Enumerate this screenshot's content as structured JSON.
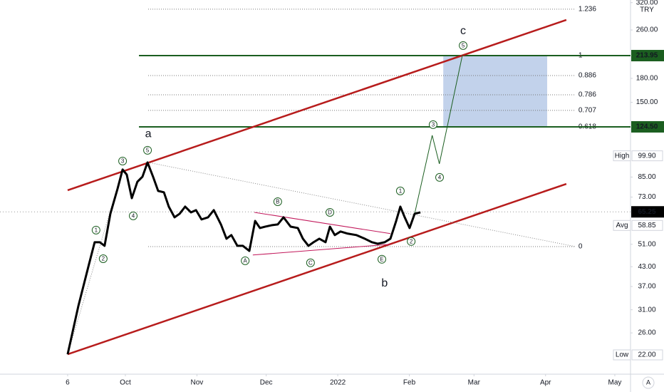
{
  "chart_data": {
    "type": "line",
    "color": "#000000",
    "log_scale": true,
    "currency": "TRY",
    "x": [
      0,
      4.6,
      9.3,
      11.7,
      13.9,
      16,
      18.5,
      21.6,
      23.8,
      25.6,
      27.8,
      30.2,
      32.4,
      34.6,
      37,
      39.2,
      41.7,
      43.8,
      46.3,
      48.5,
      50.9,
      53.4,
      55.6,
      58,
      60.8,
      63.3,
      66.4,
      68.8,
      70.9,
      73.5,
      75.9,
      78.7,
      81.2,
      83.3,
      85.5,
      88.6,
      91,
      93.5,
      96.6,
      99.7,
      101.9,
      104.3,
      106.5,
      109,
      111.7,
      113.6,
      115.7,
      118.2,
      121.3,
      125,
      128.7,
      131.8,
      134.3,
      137.3,
      139.8,
      142.3,
      144.1,
      146,
      148.1,
      150.3,
      152.8
    ],
    "values": [
      22.1,
      31.8,
      44.0,
      51.8,
      51.8,
      50.4,
      64.3,
      77.7,
      90.0,
      86.6,
      72.4,
      82.0,
      85.2,
      95.0,
      85.2,
      76.5,
      75.7,
      67.9,
      62.6,
      64.3,
      67.9,
      65.0,
      66.1,
      61.6,
      62.6,
      66.1,
      59.3,
      53.2,
      54.7,
      50.4,
      50.4,
      48.5,
      60.9,
      57.7,
      58.3,
      59.0,
      59.3,
      62.6,
      58.3,
      57.7,
      53.2,
      50.4,
      51.8,
      53.2,
      51.8,
      58.3,
      54.7,
      56.2,
      55.3,
      54.7,
      53.2,
      51.8,
      51.2,
      51.8,
      53.2,
      60.9,
      67.9,
      62.6,
      57.7,
      64.3,
      65.0
    ],
    "xlim": [
      -29.3,
      243.8
    ],
    "ylim": [
      19.0,
      326.5
    ],
    "xticks": [
      {
        "value": 0,
        "label": "6"
      },
      {
        "value": 25,
        "label": "Oct"
      },
      {
        "value": 56,
        "label": "Nov"
      },
      {
        "value": 86,
        "label": "Dec"
      },
      {
        "value": 117,
        "label": "2022"
      },
      {
        "value": 148,
        "label": "Feb"
      },
      {
        "value": 176,
        "label": "Mar"
      },
      {
        "value": 207,
        "label": "Apr"
      },
      {
        "value": 237,
        "label": "May"
      }
    ],
    "yticks": [
      {
        "value": 26,
        "label": "26.00"
      },
      {
        "value": 31,
        "label": "31.00"
      },
      {
        "value": 37,
        "label": "37.00"
      },
      {
        "value": 43,
        "label": "43.00"
      },
      {
        "value": 51,
        "label": "51.00"
      },
      {
        "value": 73,
        "label": "73.00"
      },
      {
        "value": 85,
        "label": "85.00"
      },
      {
        "value": 150,
        "label": "150.00"
      },
      {
        "value": 180,
        "label": "180.00"
      },
      {
        "value": 260,
        "label": "260.00"
      },
      {
        "value": 320,
        "label": "320.00"
      }
    ],
    "last_price": {
      "value": 65.25,
      "label": "65.25",
      "color": "#000000"
    },
    "levels": [
      {
        "value": 213.95,
        "label": "213.95",
        "color": "#1b5e20"
      },
      {
        "value": 124.5,
        "label": "124.50",
        "color": "#1b5e20"
      }
    ],
    "stats": [
      {
        "name": "High",
        "value": 99.9,
        "label": "99.90"
      },
      {
        "name": "Avg",
        "value": 58.85,
        "label": "58.85"
      },
      {
        "name": "Low",
        "value": 22,
        "label": "22.00"
      }
    ],
    "fib": {
      "x": [
        34.9,
        220
      ],
      "levels": [
        {
          "label": "1.236",
          "value": 304.5
        },
        {
          "label": "1",
          "value": 213.95
        },
        {
          "label": "0.886",
          "value": 183.9
        },
        {
          "label": "0.786",
          "value": 158.9
        },
        {
          "label": "0.707",
          "value": 141.1
        },
        {
          "label": "0.618",
          "value": 124.5
        },
        {
          "label": "0",
          "value": 50.1
        }
      ]
    },
    "zone": {
      "x": [
        162.7,
        207.7
      ],
      "values": [
        124.5,
        213.95
      ],
      "color": "#b3c7e6"
    },
    "lines": [
      {
        "x": [
          0,
          216
        ],
        "values": [
          76.9,
          280.7
        ],
        "color": "#b71c1c",
        "width": 2.5,
        "style": "solid"
      },
      {
        "x": [
          0,
          216
        ],
        "values": [
          22.1,
          80.7
        ],
        "color": "#b71c1c",
        "width": 2.5,
        "style": "solid"
      },
      {
        "x": [
          0,
          23.8
        ],
        "values": [
          22.1,
          90.0
        ],
        "color": "#888888",
        "width": 1,
        "style": "dotted"
      },
      {
        "x": [
          34.9,
          220
        ],
        "values": [
          95.0,
          50.1
        ],
        "color": "#888888",
        "width": 1,
        "style": "dotted"
      },
      {
        "x": [
          80.9,
          139.8
        ],
        "values": [
          65.0,
          55.3
        ],
        "color": "#c2185b",
        "width": 1,
        "style": "solid"
      },
      {
        "x": [
          80.2,
          139.8
        ],
        "values": [
          47.0,
          51.0
        ],
        "color": "#c2185b",
        "width": 1,
        "style": "solid"
      },
      {
        "x": [
          150.3,
          157.9,
          161,
          171
        ],
        "values": [
          64.3,
          116.7,
          94.0,
          215
        ],
        "color": "#1b5e20",
        "width": 1,
        "style": "solid"
      }
    ],
    "waves": [
      {
        "label": "1",
        "x": 12.3,
        "value": 56.8,
        "circle": true
      },
      {
        "label": "2",
        "x": 15.4,
        "value": 45.7,
        "circle": true
      },
      {
        "label": "3",
        "x": 23.8,
        "value": 96.0,
        "circle": true
      },
      {
        "label": "4",
        "x": 28.4,
        "value": 63.3,
        "circle": true
      },
      {
        "label": "5",
        "x": 34.6,
        "value": 104.2,
        "circle": true
      },
      {
        "label": "A",
        "x": 76.9,
        "value": 45.0,
        "circle": true
      },
      {
        "label": "B",
        "x": 91,
        "value": 70.5,
        "circle": true
      },
      {
        "label": "C",
        "x": 105.2,
        "value": 44.3,
        "circle": true
      },
      {
        "label": "D",
        "x": 113.6,
        "value": 65.0,
        "circle": true
      },
      {
        "label": "E",
        "x": 136.1,
        "value": 45.5,
        "circle": true
      },
      {
        "label": "1",
        "x": 144.1,
        "value": 76.5,
        "circle": true
      },
      {
        "label": "2",
        "x": 148.8,
        "value": 52.1,
        "circle": true
      },
      {
        "label": "3",
        "x": 158.3,
        "value": 126.6,
        "circle": true
      },
      {
        "label": "4",
        "x": 161.1,
        "value": 84.8,
        "circle": true
      },
      {
        "label": "5",
        "x": 171.3,
        "value": 231,
        "circle": true
      },
      {
        "label": "a",
        "x": 34.9,
        "value": 117.9,
        "circle": false
      },
      {
        "label": "b",
        "x": 137.3,
        "value": 37.8,
        "circle": false
      },
      {
        "label": "c",
        "x": 171.3,
        "value": 257.3,
        "circle": false
      }
    ]
  }
}
